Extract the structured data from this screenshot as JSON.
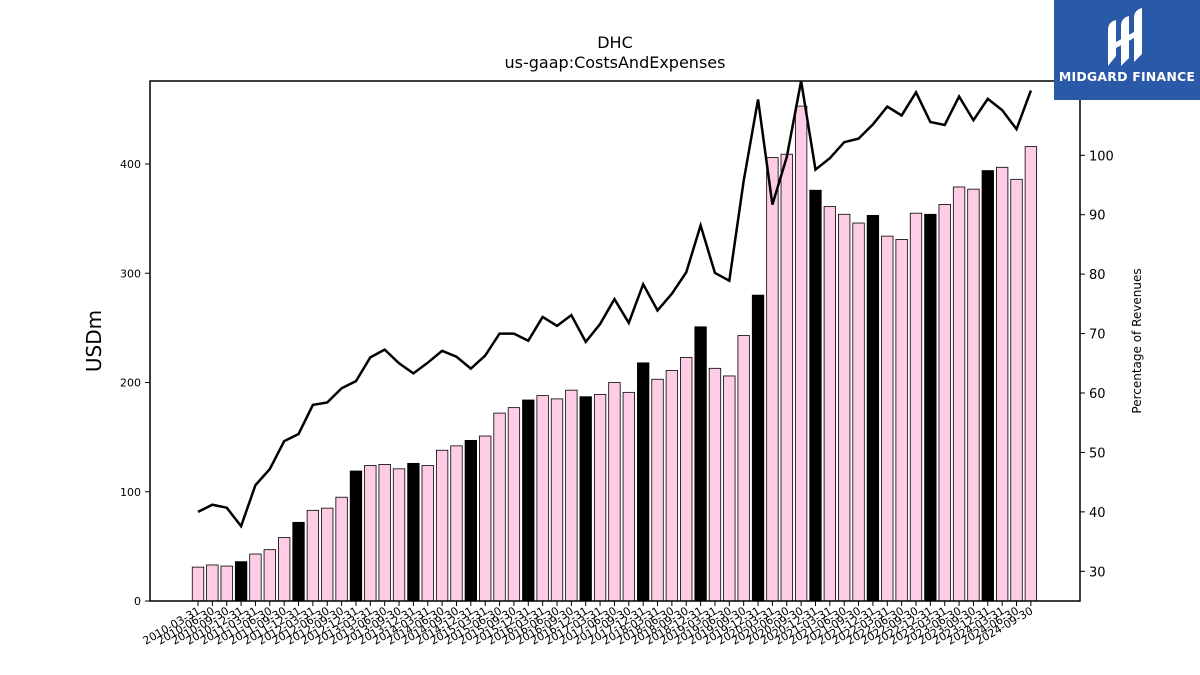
{
  "chart_data": {
    "type": "bar",
    "title": "DHC",
    "subtitle": "us-gaap:CostsAndExpenses",
    "ylabel": "USDm",
    "ylabel_right": "Percentage of Revenues",
    "ylim": [
      0,
      476
    ],
    "ylim_right": [
      25,
      112.5
    ],
    "yticks": [
      0,
      100,
      200,
      300,
      400
    ],
    "yticks_right": [
      30,
      40,
      50,
      60,
      70,
      80,
      90,
      100
    ],
    "grid": false,
    "colors": {
      "quarter_bar": "#ffcce6",
      "annual_bar": "#000000",
      "line": "#000000"
    },
    "categories": [
      "2010-03-31",
      "2010-06-30",
      "2010-09-30",
      "2010-12-31",
      "2011-03-31",
      "2011-06-30",
      "2011-09-30",
      "2011-12-31",
      "2012-03-31",
      "2012-06-30",
      "2012-09-30",
      "2012-12-31",
      "2013-03-31",
      "2013-06-30",
      "2013-09-30",
      "2013-12-31",
      "2014-03-31",
      "2014-06-30",
      "2014-09-30",
      "2014-12-31",
      "2015-03-31",
      "2015-06-30",
      "2015-09-30",
      "2015-12-31",
      "2016-03-31",
      "2016-06-30",
      "2016-09-30",
      "2016-12-31",
      "2017-03-31",
      "2017-06-30",
      "2017-09-30",
      "2017-12-31",
      "2018-03-31",
      "2018-06-30",
      "2018-09-30",
      "2018-12-31",
      "2019-03-31",
      "2019-06-30",
      "2019-09-30",
      "2019-12-31",
      "2020-03-31",
      "2020-06-30",
      "2020-09-30",
      "2020-12-31",
      "2021-03-31",
      "2021-06-30",
      "2021-09-30",
      "2021-12-31",
      "2022-03-31",
      "2022-06-30",
      "2022-09-30",
      "2022-12-31",
      "2023-03-31",
      "2023-06-30",
      "2023-09-30",
      "2023-12-31",
      "2024-03-31",
      "2024-06-30",
      "2024-09-30"
    ],
    "series": [
      {
        "kind": "bar",
        "axis": "left",
        "values": [
          31,
          33,
          32,
          36,
          43,
          47,
          58,
          72,
          83,
          85,
          95,
          119,
          124,
          125,
          121,
          126,
          124,
          138,
          142,
          147,
          151,
          172,
          177,
          184,
          188,
          185,
          193,
          187,
          189,
          200,
          191,
          218,
          203,
          211,
          223,
          251,
          213,
          206,
          243,
          280,
          406,
          409,
          453,
          376,
          361,
          354,
          346,
          353,
          334,
          331,
          355,
          354,
          363,
          379,
          377,
          394,
          397,
          386,
          416
        ],
        "is_annual": [
          false,
          false,
          false,
          true,
          false,
          false,
          false,
          true,
          false,
          false,
          false,
          true,
          false,
          false,
          false,
          true,
          false,
          false,
          false,
          true,
          false,
          false,
          false,
          true,
          false,
          false,
          false,
          true,
          false,
          false,
          false,
          true,
          false,
          false,
          false,
          true,
          false,
          false,
          false,
          true,
          false,
          false,
          false,
          true,
          false,
          false,
          false,
          true,
          false,
          false,
          false,
          true,
          false,
          false,
          false,
          true,
          false,
          false,
          false
        ]
      },
      {
        "kind": "line",
        "axis": "right",
        "values": [
          40,
          41.2,
          40.7,
          37.6,
          44.5,
          47.2,
          51.9,
          53.1,
          58,
          58.4,
          60.8,
          62,
          66,
          67.3,
          65,
          63.3,
          65.1,
          67.1,
          66.1,
          64.1,
          66.3,
          70,
          70,
          68.8,
          72.8,
          71.3,
          73.1,
          68.6,
          71.6,
          75.8,
          71.8,
          78.3,
          73.9,
          76.7,
          80.3,
          88.2,
          80.2,
          78.9,
          95.7,
          109.4,
          91.7,
          99.7,
          114,
          97.6,
          99.5,
          102.2,
          102.8,
          105.2,
          108.2,
          106.7,
          110.6,
          105.6,
          105.1,
          109.9,
          105.9,
          109.5,
          107.6,
          104.4,
          110.9
        ]
      }
    ]
  },
  "logo": {
    "text": "MIDGARD FINANCE",
    "icon": "midgard-logo-icon"
  }
}
